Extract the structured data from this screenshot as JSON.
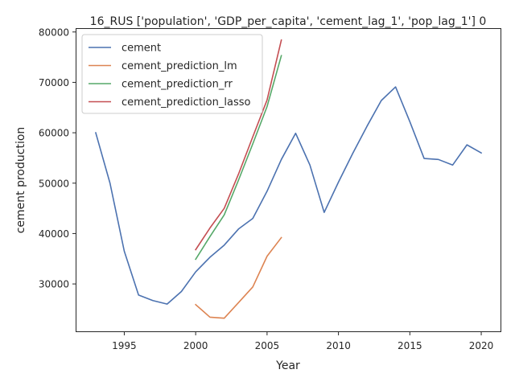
{
  "chart_data": {
    "type": "line",
    "title": "16_RUS ['population', 'GDP_per_capita', 'cement_lag_1', 'pop_lag_1'] 0",
    "xlabel": "Year",
    "ylabel": "cement production",
    "xlim": [
      1991.65,
      2021.35
    ],
    "ylim": [
      20600,
      80600
    ],
    "x_ticks": [
      1995,
      2000,
      2005,
      2010,
      2015,
      2020
    ],
    "y_ticks": [
      30000,
      40000,
      50000,
      60000,
      70000,
      80000
    ],
    "grid": false,
    "legend_position": "top-left",
    "series": [
      {
        "name": "cement",
        "color": "#4c72b0",
        "x": [
          1993,
          1994,
          1995,
          1996,
          1997,
          1998,
          1999,
          2000,
          2001,
          2002,
          2003,
          2004,
          2005,
          2006,
          2007,
          2008,
          2009,
          2010,
          2011,
          2012,
          2013,
          2014,
          2015,
          2016,
          2017,
          2018,
          2019,
          2020
        ],
        "y": [
          60000,
          50000,
          36500,
          27800,
          26700,
          26000,
          28500,
          32400,
          35300,
          37700,
          40900,
          43000,
          48400,
          54700,
          59900,
          53600,
          44200,
          50200,
          55900,
          61300,
          66400,
          69100,
          62200,
          54900,
          54700,
          53600,
          57600,
          56000
        ]
      },
      {
        "name": "cement_prediction_lm",
        "color": "#dd8452",
        "x": [
          2000,
          2001,
          2002,
          2003,
          2004,
          2005,
          2006
        ],
        "y": [
          25900,
          23400,
          23200,
          26300,
          29400,
          35500,
          39200
        ]
      },
      {
        "name": "cement_prediction_rr",
        "color": "#55a868",
        "x": [
          2000,
          2001,
          2002,
          2003,
          2004,
          2005,
          2006
        ],
        "y": [
          34900,
          39400,
          43700,
          50600,
          57800,
          65200,
          75300
        ]
      },
      {
        "name": "cement_prediction_lasso",
        "color": "#c44e52",
        "x": [
          2000,
          2001,
          2002,
          2003,
          2004,
          2005,
          2006
        ],
        "y": [
          36800,
          41100,
          45000,
          51800,
          59200,
          66500,
          78400
        ]
      }
    ]
  }
}
